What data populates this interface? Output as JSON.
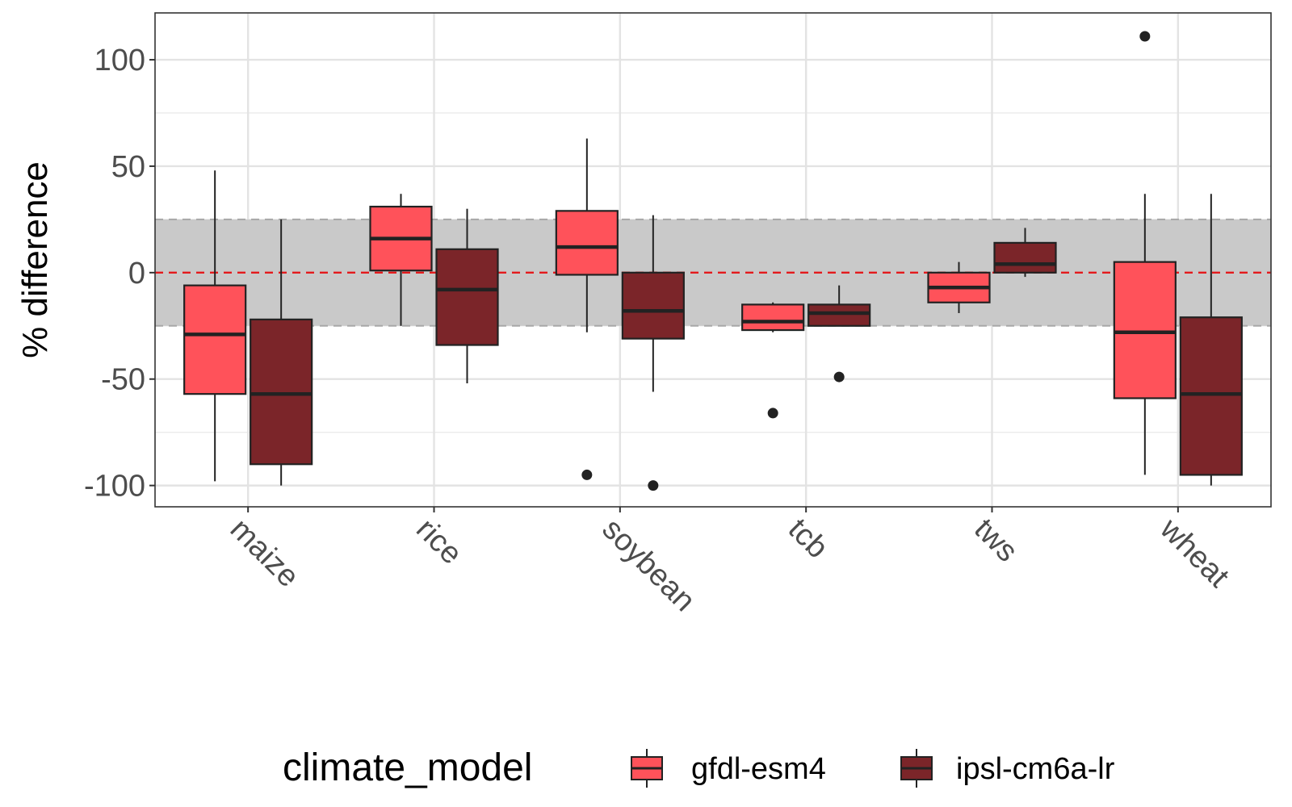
{
  "chart_data": {
    "type": "boxplot",
    "title": "",
    "xlabel": "",
    "ylabel": "% difference",
    "ylim": [
      -110,
      122
    ],
    "yticks": [
      100,
      50,
      0,
      -50,
      -100
    ],
    "ytick_labels": [
      "100",
      "50",
      "0",
      "-50",
      "-100"
    ],
    "grid": true,
    "reference_line": {
      "value": 0,
      "color": "#e41a1c",
      "style": "dashed"
    },
    "band": {
      "from": -25,
      "to": 25,
      "color": "#c9c9c9"
    },
    "categories": [
      "maize",
      "rice",
      "soybean",
      "tcb",
      "tws",
      "wheat"
    ],
    "legend": {
      "title": "climate_model",
      "position": "bottom"
    },
    "series": [
      {
        "name": "gfdl-esm4",
        "color": "#ff525a",
        "boxes": [
          {
            "category": "maize",
            "whisker_low": -98,
            "q1": -57,
            "median": -29,
            "q3": -6,
            "whisker_high": 48,
            "outliers": []
          },
          {
            "category": "rice",
            "whisker_low": -25,
            "q1": 1,
            "median": 16,
            "q3": 31,
            "whisker_high": 37,
            "outliers": []
          },
          {
            "category": "soybean",
            "whisker_low": -28,
            "q1": -1,
            "median": 12,
            "q3": 29,
            "whisker_high": 63,
            "outliers": [
              -95
            ]
          },
          {
            "category": "tcb",
            "whisker_low": -28,
            "q1": -27,
            "median": -23,
            "q3": -15,
            "whisker_high": -14,
            "outliers": [
              -66
            ]
          },
          {
            "category": "tws",
            "whisker_low": -19,
            "q1": -14,
            "median": -7,
            "q3": 0,
            "whisker_high": 5,
            "outliers": []
          },
          {
            "category": "wheat",
            "whisker_low": -95,
            "q1": -59,
            "median": -28,
            "q3": 5,
            "whisker_high": 37,
            "outliers": [
              111
            ]
          }
        ]
      },
      {
        "name": "ipsl-cm6a-lr",
        "color": "#7b2529",
        "boxes": [
          {
            "category": "maize",
            "whisker_low": -100,
            "q1": -90,
            "median": -57,
            "q3": -22,
            "whisker_high": 25,
            "outliers": []
          },
          {
            "category": "rice",
            "whisker_low": -52,
            "q1": -34,
            "median": -8,
            "q3": 11,
            "whisker_high": 30,
            "outliers": []
          },
          {
            "category": "soybean",
            "whisker_low": -56,
            "q1": -31,
            "median": -18,
            "q3": 0,
            "whisker_high": 27,
            "outliers": [
              -100
            ]
          },
          {
            "category": "tcb",
            "whisker_low": -25,
            "q1": -25,
            "median": -19,
            "q3": -15,
            "whisker_high": -6,
            "outliers": [
              -49
            ]
          },
          {
            "category": "tws",
            "whisker_low": -2,
            "q1": 0,
            "median": 4,
            "q3": 14,
            "whisker_high": 21,
            "outliers": []
          },
          {
            "category": "wheat",
            "whisker_low": -100,
            "q1": -95,
            "median": -57,
            "q3": -21,
            "whisker_high": 37,
            "outliers": []
          }
        ]
      }
    ]
  }
}
